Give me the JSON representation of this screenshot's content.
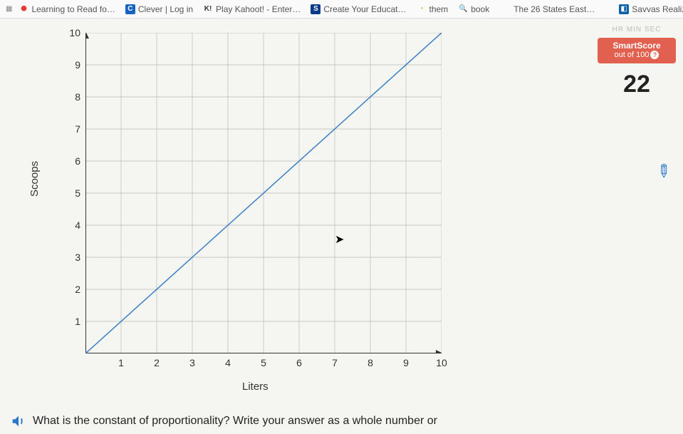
{
  "bookmarks": [
    {
      "label": "Learning to Read fo…",
      "icon": "🟥",
      "icon_bg": "",
      "name": "bm-learning-read"
    },
    {
      "label": "Clever | Log in",
      "icon": "C",
      "icon_bg": "#1565c0",
      "icon_color": "#fff",
      "name": "bm-clever"
    },
    {
      "label": "Play Kahoot! - Enter…",
      "icon": "K!",
      "icon_bg": "",
      "name": "bm-kahoot"
    },
    {
      "label": "Create Your Educat…",
      "icon": "S",
      "icon_bg": "#0a3a8a",
      "icon_color": "#fff",
      "name": "bm-create-educat"
    },
    {
      "label": "them",
      "icon": "◔",
      "icon_bg": "",
      "name": "bm-them"
    },
    {
      "label": "book",
      "icon": "🔍",
      "icon_bg": "",
      "name": "bm-book"
    },
    {
      "label": "The 26 States East…",
      "icon": "",
      "icon_bg": "",
      "name": "bm-26-states"
    },
    {
      "label": "Savvas Realize",
      "icon": "◧",
      "icon_bg": "#0d5fa6",
      "icon_color": "#fff",
      "name": "bm-savvas"
    }
  ],
  "chart": {
    "type": "line",
    "xlabel": "Liters",
    "ylabel": "Scoops",
    "xlim": [
      0,
      10
    ],
    "ylim": [
      0,
      10
    ],
    "xticks": [
      1,
      2,
      3,
      4,
      5,
      6,
      7,
      8,
      9,
      10
    ],
    "yticks": [
      1,
      2,
      3,
      4,
      5,
      6,
      7,
      8,
      9,
      10
    ],
    "grid_color": "#b8b8b8",
    "axis_color": "#333333",
    "line_color": "#3b7fc4",
    "background": "#f5f5f2",
    "line": {
      "x1": 0,
      "y1": 0,
      "x2": 10,
      "y2": 10
    },
    "axis_label_x": "x",
    "line_width": 1.5
  },
  "smartscore": {
    "title": "SmartScore",
    "subtitle": "out of 100",
    "score": "22",
    "box_bg": "#e2604f"
  },
  "timer": {
    "labels": "HR   MIN   SEC"
  },
  "question": {
    "text": "What is the constant of proportionality? Write your answer as a whole number or"
  }
}
